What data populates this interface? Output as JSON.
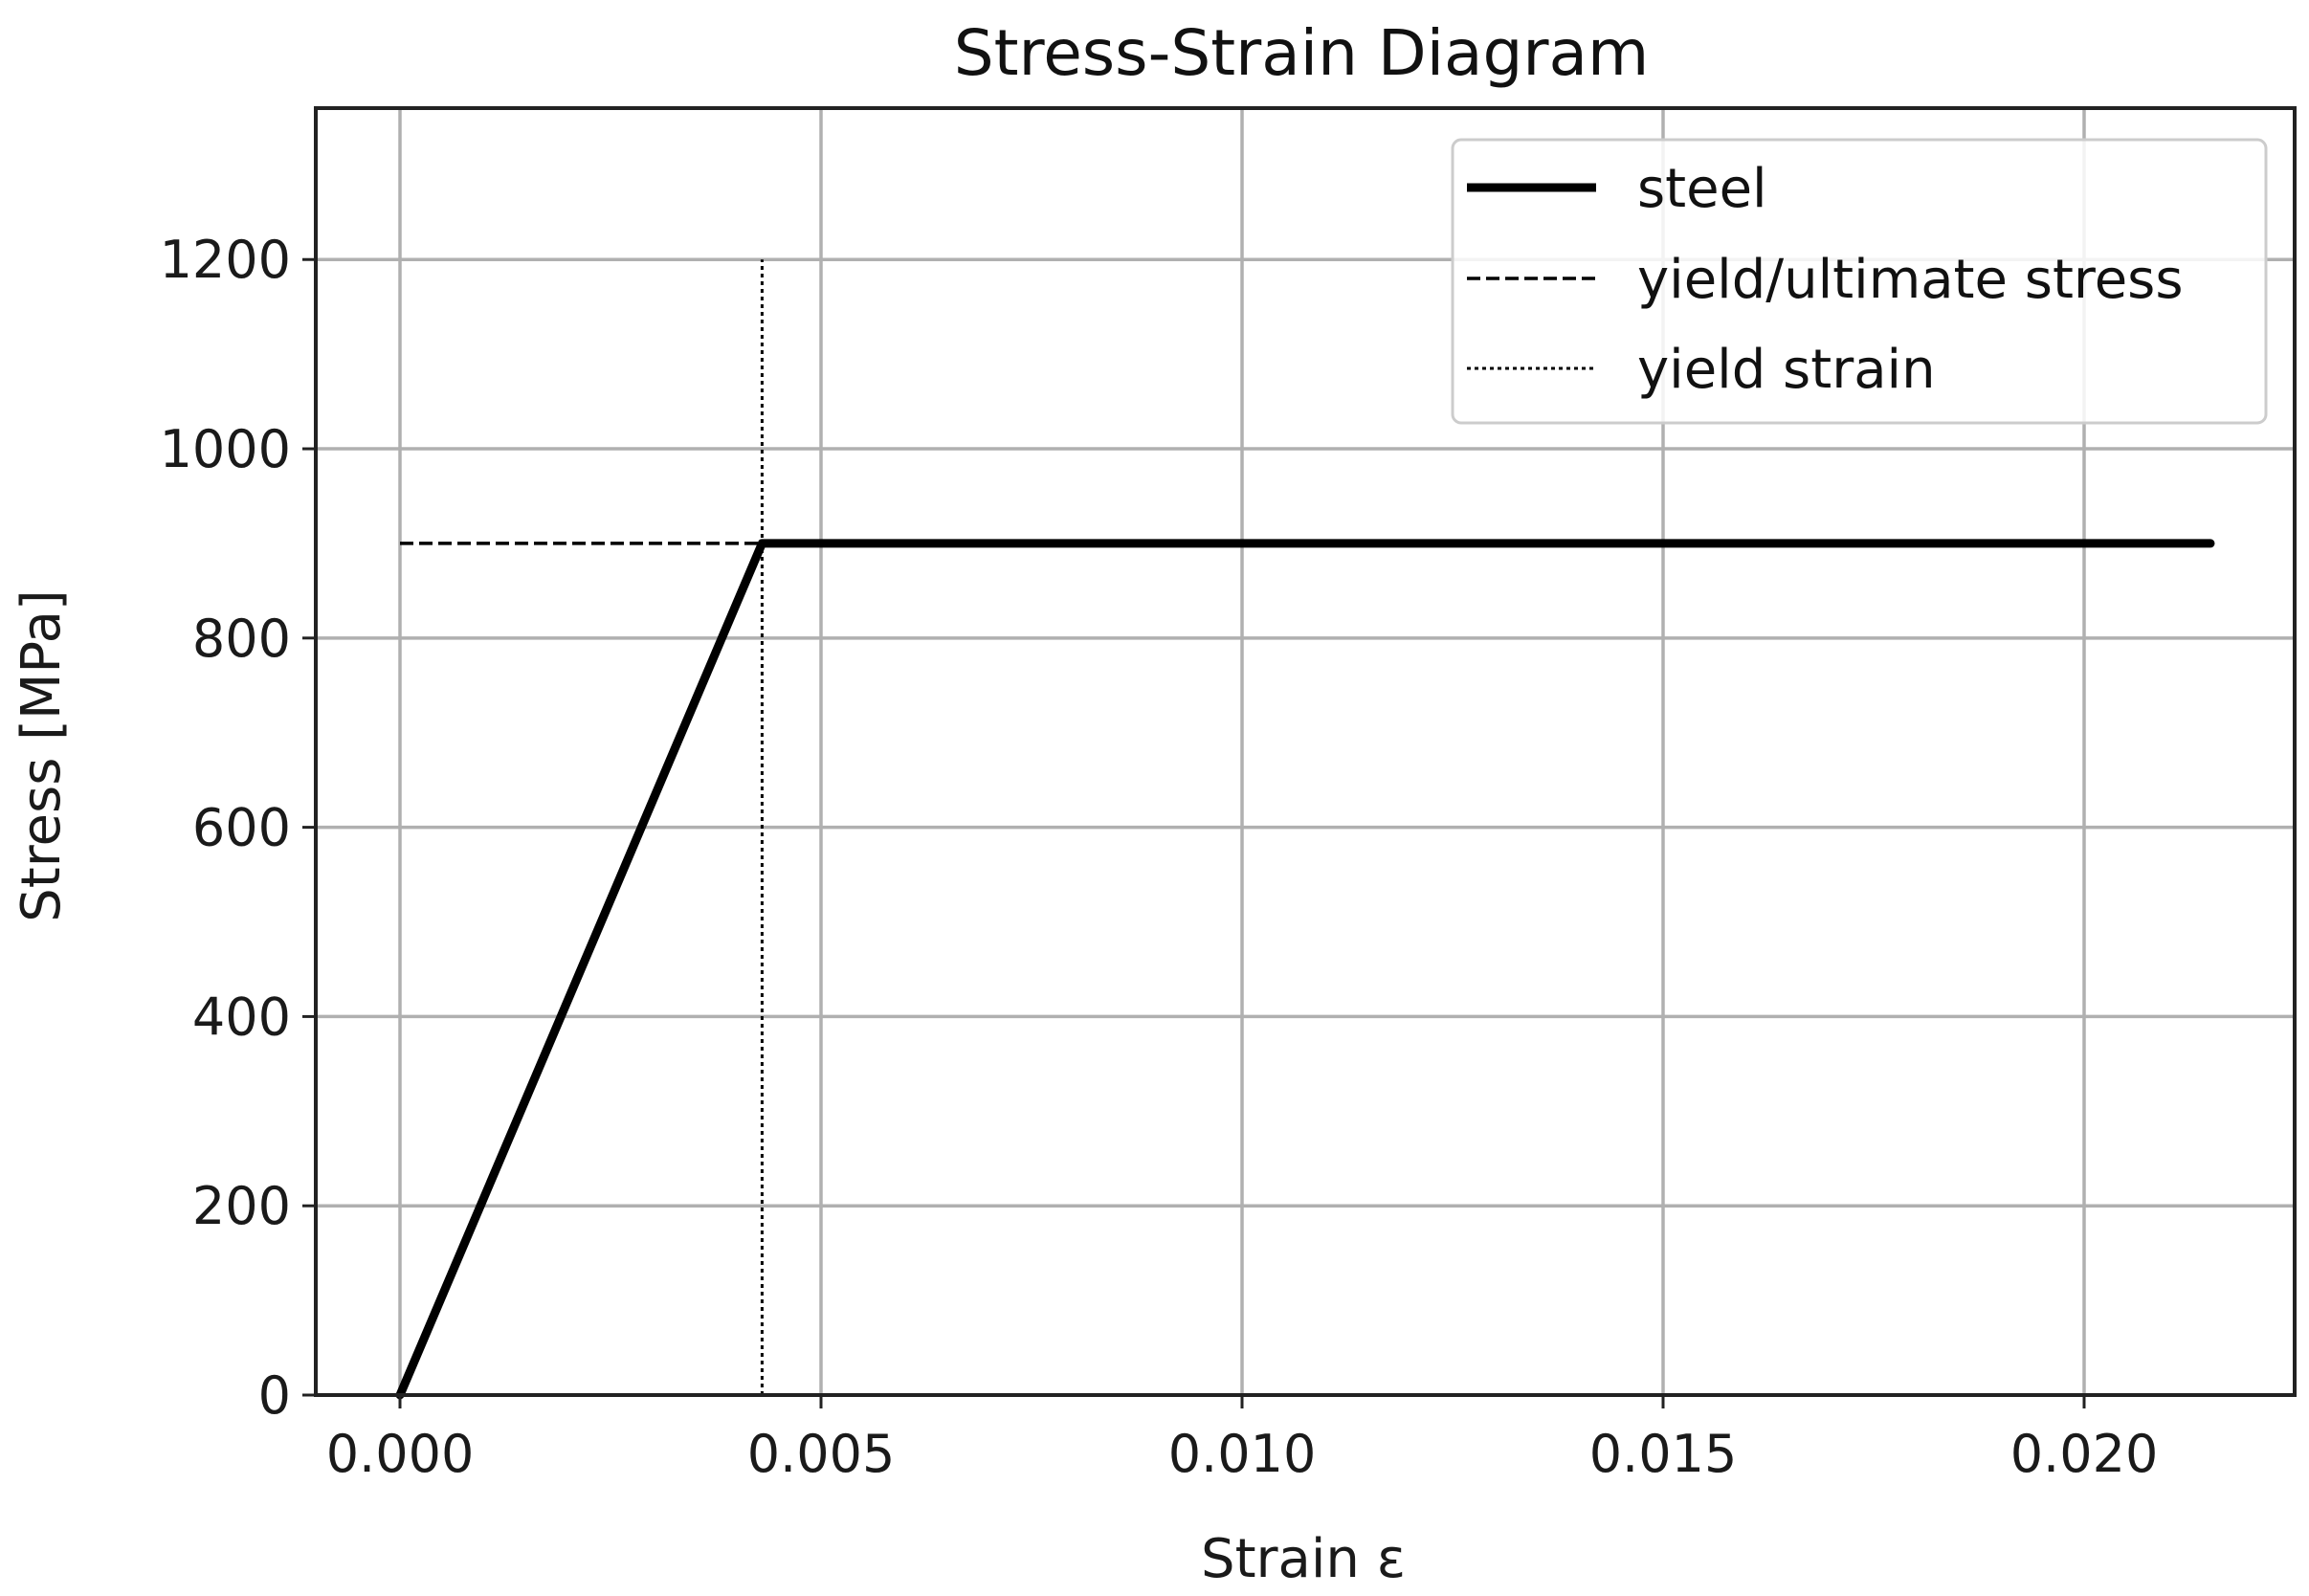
{
  "chart_data": {
    "type": "line",
    "title": "Stress-Strain Diagram",
    "xlabel": "Strain ε",
    "ylabel": "Stress [MPa]",
    "xlim": [
      -0.001,
      0.0225
    ],
    "ylim": [
      0,
      1360
    ],
    "xticks": [
      0.0,
      0.005,
      0.01,
      0.015,
      0.02
    ],
    "xtick_labels": [
      "0.000",
      "0.005",
      "0.010",
      "0.015",
      "0.020"
    ],
    "yticks": [
      0,
      200,
      400,
      600,
      800,
      1000,
      1200
    ],
    "ytick_labels": [
      "0",
      "200",
      "400",
      "600",
      "800",
      "1000",
      "1200"
    ],
    "grid": true,
    "legend_position": "top-right",
    "series": [
      {
        "name": "steel",
        "style": "solid",
        "color": "#000000",
        "x": [
          0.0,
          0.0043,
          0.0215
        ],
        "y": [
          0,
          900,
          900
        ]
      },
      {
        "name": "yield/ultimate stress",
        "style": "dashed",
        "color": "#000000",
        "x": [
          0.0,
          0.0043
        ],
        "y": [
          900,
          900
        ]
      },
      {
        "name": "yield strain",
        "style": "dotted",
        "color": "#000000",
        "x": [
          0.0043,
          0.0043
        ],
        "y": [
          0,
          1200
        ]
      }
    ]
  }
}
